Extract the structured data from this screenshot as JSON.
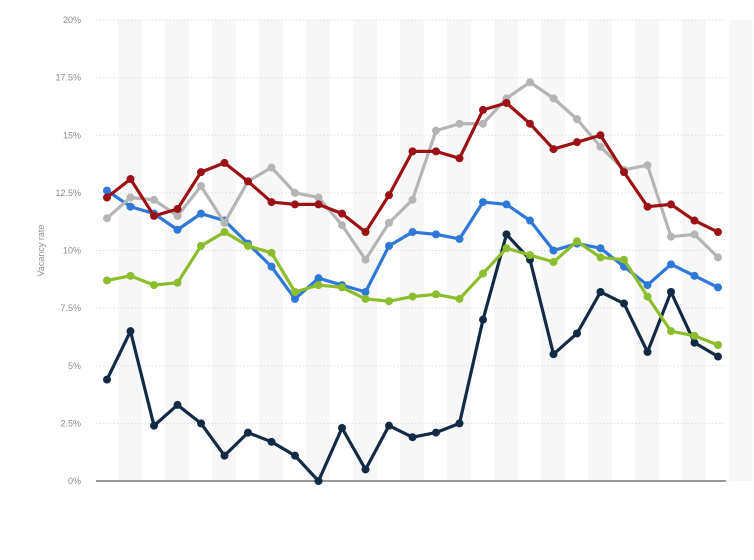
{
  "chart_data": {
    "type": "line",
    "ylabel": "Vacancy rate",
    "xlabel": "",
    "ylim": [
      0,
      20
    ],
    "y_ticks": [
      "0%",
      "2.5%",
      "5%",
      "7.5%",
      "10%",
      "12.5%",
      "15%",
      "17.5%",
      "20%"
    ],
    "y_tick_values": [
      0,
      2.5,
      5,
      7.5,
      10,
      12.5,
      15,
      17.5,
      20
    ],
    "grid": "horizontal dashed",
    "background": "alternating vertical bands",
    "x": [
      1,
      2,
      3,
      4,
      5,
      6,
      7,
      8,
      9,
      10,
      11,
      12,
      13,
      14,
      15,
      16,
      17,
      18,
      19,
      20,
      21,
      22,
      23,
      24,
      25,
      26,
      27
    ],
    "series": [
      {
        "color": "#2f78d8",
        "values": [
          12.6,
          11.9,
          11.6,
          10.9,
          11.6,
          11.3,
          10.3,
          9.3,
          7.9,
          8.8,
          8.5,
          8.2,
          10.2,
          10.8,
          10.7,
          10.5,
          12.1,
          12.0,
          11.3,
          10.0,
          10.3,
          10.1,
          9.3,
          8.5,
          9.4,
          8.9,
          8.4
        ]
      },
      {
        "color": "#132a45",
        "values": [
          4.4,
          6.5,
          2.4,
          3.3,
          2.5,
          1.1,
          2.1,
          1.7,
          1.1,
          0.0,
          2.3,
          0.5,
          2.4,
          1.9,
          2.1,
          2.5,
          7.0,
          10.7,
          9.6,
          5.5,
          6.4,
          8.2,
          7.7,
          5.6,
          8.2,
          6.0,
          5.4
        ]
      },
      {
        "color": "#b5b5b5",
        "values": [
          11.4,
          12.3,
          12.2,
          11.5,
          12.8,
          11.2,
          13.0,
          13.6,
          12.5,
          12.3,
          11.1,
          9.6,
          11.2,
          12.2,
          15.2,
          15.5,
          15.5,
          16.6,
          17.3,
          16.6,
          15.7,
          14.5,
          13.5,
          13.7,
          10.6,
          10.7,
          9.7
        ]
      },
      {
        "color": "#9b1116",
        "values": [
          12.3,
          13.1,
          11.5,
          11.8,
          13.4,
          13.8,
          13.0,
          12.1,
          12.0,
          12.0,
          11.6,
          10.8,
          12.4,
          14.3,
          14.3,
          14.0,
          16.1,
          16.4,
          15.5,
          14.4,
          14.7,
          15.0,
          13.4,
          11.9,
          12.0,
          11.3,
          10.8
        ]
      },
      {
        "color": "#8cbd2c",
        "values": [
          8.7,
          8.9,
          8.5,
          8.6,
          10.2,
          10.8,
          10.2,
          9.9,
          8.2,
          8.5,
          8.4,
          7.9,
          7.8,
          8.0,
          8.1,
          7.9,
          9.0,
          10.1,
          9.8,
          9.5,
          10.4,
          9.7,
          9.6,
          8.0,
          6.5,
          6.3,
          5.9
        ]
      }
    ]
  }
}
